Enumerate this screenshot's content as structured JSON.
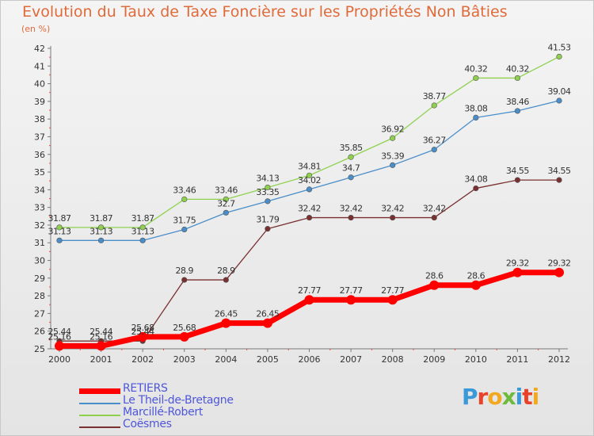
{
  "title": "Evolution du Taux de Taxe Foncière sur les Propriétés Non Bâties",
  "subtitle": "(en %)",
  "brand": "Proxiti",
  "brand_colors": [
    "#3a9ad9",
    "#e8432a",
    "#f2a91f",
    "#6dbb3c",
    "#3a9ad9",
    "#e8432a",
    "#f2a91f"
  ],
  "chart_data": {
    "type": "line",
    "x": [
      "2000",
      "2001",
      "2002",
      "2003",
      "2004",
      "2005",
      "2006",
      "2007",
      "2008",
      "2009",
      "2010",
      "2011",
      "2012"
    ],
    "ylim": [
      25,
      42
    ],
    "yticks": [
      25,
      26,
      27,
      28,
      29,
      30,
      31,
      32,
      33,
      34,
      35,
      36,
      37,
      38,
      39,
      40,
      41,
      42
    ],
    "grid": false,
    "legend_position": "bottom-left",
    "series": [
      {
        "name": "RETIERS",
        "color": "#ff0000",
        "values": [
          25.16,
          25.16,
          25.68,
          25.68,
          26.45,
          26.45,
          27.77,
          27.77,
          27.77,
          28.6,
          28.6,
          29.32,
          29.32
        ],
        "labels": [
          "25.16",
          "25.16",
          "25.68",
          "25.68",
          "26.45",
          "26.45",
          "27.77",
          "27.77",
          "27.77",
          "28.6",
          "28.6",
          "29.32",
          "29.32"
        ]
      },
      {
        "name": "Le Theil-de-Bretagne",
        "color": "#4a8ec9",
        "values": [
          31.13,
          31.13,
          31.13,
          31.75,
          32.7,
          33.35,
          34.02,
          34.7,
          35.39,
          36.27,
          38.08,
          38.46,
          39.04
        ],
        "labels": [
          "31.13",
          "31.13",
          "31.13",
          "31.75",
          "32.7",
          "33.35",
          "34.02",
          "34.7",
          "35.39",
          "36.27",
          "38.08",
          "38.46",
          "39.04"
        ]
      },
      {
        "name": "Marcillé-Robert",
        "color": "#8fd14f",
        "values": [
          31.87,
          31.87,
          31.87,
          33.46,
          33.46,
          34.13,
          34.81,
          35.85,
          36.92,
          38.77,
          40.32,
          40.32,
          41.53
        ],
        "labels": [
          "31.87",
          "31.87",
          "31.87",
          "33.46",
          "33.46",
          "34.13",
          "34.81",
          "35.85",
          "36.92",
          "38.77",
          "40.32",
          "40.32",
          "41.53"
        ]
      },
      {
        "name": "Coësmes",
        "color": "#7a3030",
        "values": [
          25.44,
          25.44,
          25.44,
          28.9,
          28.9,
          31.79,
          32.42,
          32.42,
          32.42,
          32.42,
          34.08,
          34.55,
          34.55
        ],
        "labels": [
          "25.44",
          "25.44",
          "25.44",
          "28.9",
          "28.9",
          "31.79",
          "32.42",
          "32.42",
          "32.42",
          "32.42",
          "34.08",
          "34.55",
          "34.55"
        ]
      }
    ]
  }
}
